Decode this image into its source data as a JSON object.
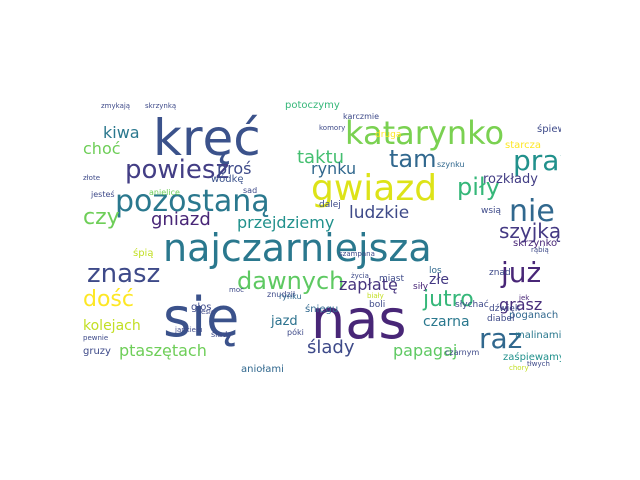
{
  "words": [
    {
      "text": "kręć",
      "color": "#3b528b"
    },
    {
      "text": "katarynko",
      "color": "#7ad151"
    },
    {
      "text": "się",
      "color": "#3b528b"
    },
    {
      "text": "nas",
      "color": "#482677"
    },
    {
      "text": "najczarniejsza",
      "color": "#2a788e"
    },
    {
      "text": "gwiazd",
      "color": "#dde318"
    },
    {
      "text": "pozostaną",
      "color": "#2a788e"
    },
    {
      "text": "nie",
      "color": "#31688e"
    },
    {
      "text": "prawa",
      "color": "#21918c"
    },
    {
      "text": "raz",
      "color": "#31688e"
    },
    {
      "text": "już",
      "color": "#482677"
    },
    {
      "text": "powiesz",
      "color": "#433e85"
    },
    {
      "text": "tam",
      "color": "#31688e"
    },
    {
      "text": "znasz",
      "color": "#3e4a89"
    },
    {
      "text": "dawnych",
      "color": "#5ec962"
    },
    {
      "text": "jutro",
      "color": "#35b779"
    },
    {
      "text": "piły",
      "color": "#35b779"
    },
    {
      "text": "czy",
      "color": "#6ece58"
    },
    {
      "text": "szyjką",
      "color": "#443983"
    },
    {
      "text": "taktu",
      "color": "#44bf70"
    },
    {
      "text": "gniazd",
      "color": "#482677"
    },
    {
      "text": "kiwa",
      "color": "#2a788e"
    },
    {
      "text": "choć",
      "color": "#6ece58"
    },
    {
      "text": "ludzkie",
      "color": "#3e4a89"
    },
    {
      "text": "rynku",
      "color": "#31688e"
    },
    {
      "text": "proś",
      "color": "#3e4a89"
    },
    {
      "text": "przejdziemy",
      "color": "#21918c"
    },
    {
      "text": "zapłatę",
      "color": "#46337e"
    },
    {
      "text": "dość",
      "color": "#fde725"
    },
    {
      "text": "kolejach",
      "color": "#c2df23"
    },
    {
      "text": "ptaszętach",
      "color": "#6ece58"
    },
    {
      "text": "ślady",
      "color": "#3e4a89"
    },
    {
      "text": "papagaj",
      "color": "#5ec962"
    },
    {
      "text": "grasz",
      "color": "#472d7b"
    },
    {
      "text": "czarna",
      "color": "#2a788e"
    },
    {
      "text": "rozkłady",
      "color": "#433e85"
    },
    {
      "text": "złe",
      "color": "#443983"
    },
    {
      "text": "jazd",
      "color": "#2c728e"
    },
    {
      "text": "wódkę",
      "color": "#3b528b"
    },
    {
      "text": "rynku",
      "color": "#31688e"
    },
    {
      "text": "potoczymy",
      "color": "#35b779"
    },
    {
      "text": "śpiew",
      "color": "#3e4a89"
    },
    {
      "text": "starcza",
      "color": "#fde725"
    },
    {
      "text": "poganach",
      "color": "#31688e"
    },
    {
      "text": "skrzynko",
      "color": "#482677"
    },
    {
      "text": "malinami",
      "color": "#2a788e"
    },
    {
      "text": "zaśpiewamy",
      "color": "#21918c"
    },
    {
      "text": "aniołami",
      "color": "#31688e"
    },
    {
      "text": "gruzy",
      "color": "#3e4a89"
    },
    {
      "text": "przepowiadaj",
      "color": "#21918c"
    },
    {
      "text": "śpią",
      "color": "#c2df23"
    },
    {
      "text": "ślady",
      "color": "#3e4a89"
    },
    {
      "text": "głos",
      "color": "#3e4a89"
    },
    {
      "text": "śniegu",
      "color": "#31688e"
    },
    {
      "text": "boli",
      "color": "#3e4a89"
    },
    {
      "text": "miast",
      "color": "#3e4a89"
    },
    {
      "text": "siły",
      "color": "#482677"
    },
    {
      "text": "los",
      "color": "#31688e"
    },
    {
      "text": "diabeł",
      "color": "#3e4a89"
    },
    {
      "text": "dźwięk",
      "color": "#3e4a89"
    },
    {
      "text": "słychać",
      "color": "#3e4a89"
    },
    {
      "text": "znad",
      "color": "#3e4a89"
    },
    {
      "text": "jek",
      "color": "#482677"
    },
    {
      "text": "wsią",
      "color": "#3e4a89"
    },
    {
      "text": "szynku",
      "color": "#31688e"
    },
    {
      "text": "dalej",
      "color": "#3e4a89"
    },
    {
      "text": "sad",
      "color": "#3e4a89"
    },
    {
      "text": "anielice",
      "color": "#6ece58"
    },
    {
      "text": "jesteś",
      "color": "#3e4a89"
    },
    {
      "text": "złote",
      "color": "#3e4a89"
    },
    {
      "text": "zmykają",
      "color": "#3e4a89"
    },
    {
      "text": "skrzynką",
      "color": "#3e4a89"
    },
    {
      "text": "życia",
      "color": "#3e4a89"
    },
    {
      "text": "komory",
      "color": "#3e4a89"
    },
    {
      "text": "druga",
      "color": "#fde725"
    },
    {
      "text": "karczmie",
      "color": "#3e4a89"
    },
    {
      "text": "rąbią",
      "color": "#3e4a89"
    },
    {
      "text": "szampana",
      "color": "#3e4a89"
    },
    {
      "text": "czarnym",
      "color": "#3e4a89"
    },
    {
      "text": "pókі",
      "color": "#3e4a89"
    },
    {
      "text": "chory",
      "color": "#c2df23"
    },
    {
      "text": "jankielu",
      "color": "#3e4a89"
    },
    {
      "text": "pewnie",
      "color": "#3e4a89"
    },
    {
      "text": "tłwych",
      "color": "#3e4a89"
    },
    {
      "text": "znudził",
      "color": "#3e4a89"
    },
    {
      "text": "moc",
      "color": "#3e4a89"
    },
    {
      "text": "lesie",
      "color": "#3e4a89"
    },
    {
      "text": "biały",
      "color": "#c2df23"
    }
  ]
}
